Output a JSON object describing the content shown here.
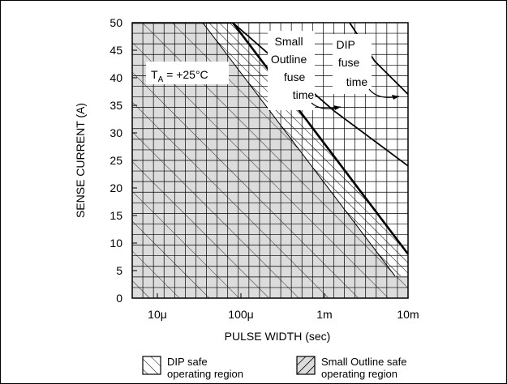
{
  "chart_data": {
    "type": "area",
    "x_scale": "log",
    "xlabel": "PULSE WIDTH (sec)",
    "ylabel": "SENSE CURRENT (A)",
    "xlim": [
      "5μ",
      "10m"
    ],
    "ylim": [
      0,
      50
    ],
    "x_ticks": [
      "10μ",
      "100μ",
      "1m",
      "10m"
    ],
    "y_ticks": [
      0,
      5,
      10,
      15,
      20,
      25,
      30,
      35,
      40,
      45,
      50
    ],
    "grid": true,
    "annotation": {
      "prefix": "T",
      "subscript": "A",
      "value": " = +25°C"
    },
    "series": [
      {
        "name": "Small Outline safe operating region",
        "boundary_x": [
          "5μ",
          "35μ",
          "7m",
          "10m"
        ],
        "boundary_y": [
          50,
          50,
          4,
          4
        ]
      },
      {
        "name": "DIP safe operating region",
        "boundary_x": [
          "5μ",
          "80μ",
          "10m"
        ],
        "boundary_y": [
          50,
          50,
          8
        ]
      }
    ],
    "fuse_curves": [
      {
        "label": [
          "Small",
          "Outline",
          "fuse",
          "time"
        ],
        "x": [
          "80μ",
          "1.3m",
          "10m"
        ],
        "y": [
          50,
          34,
          24
        ]
      },
      {
        "label": [
          "DIP",
          "fuse",
          "time"
        ],
        "x": [
          "2m",
          "4m",
          "10m"
        ],
        "y": [
          50,
          43,
          37
        ]
      }
    ],
    "legend": [
      {
        "label_line1": "DIP safe",
        "label_line2": "operating region",
        "pattern": "hatch"
      },
      {
        "label_line1": "Small Outline safe",
        "label_line2": "operating region",
        "pattern": "crosshatch"
      }
    ],
    "legend_position": "bottom"
  }
}
